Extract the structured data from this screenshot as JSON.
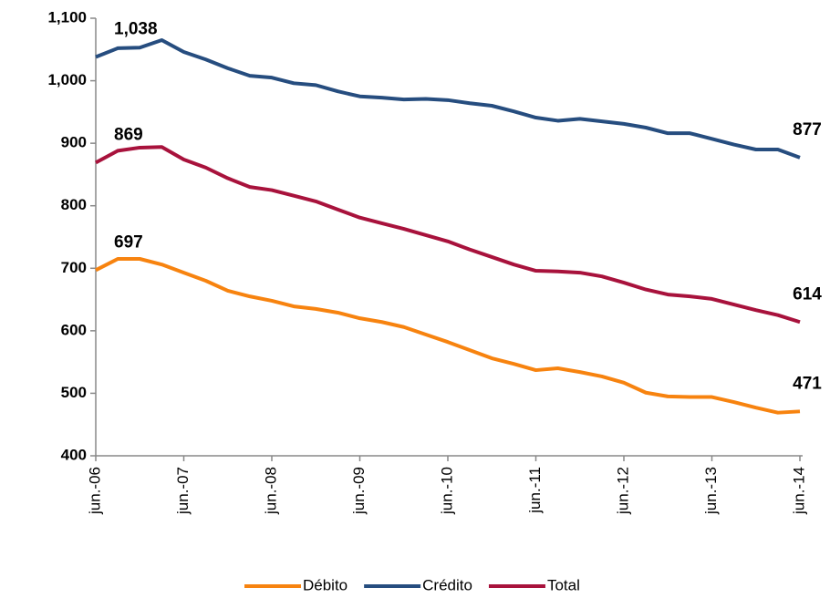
{
  "chart_data": {
    "type": "line",
    "categories": [
      "jun.-06",
      null,
      null,
      null,
      "jun.-07",
      null,
      null,
      null,
      "jun.-08",
      null,
      null,
      null,
      "jun.-09",
      null,
      null,
      null,
      "jun.-10",
      null,
      null,
      null,
      "jun.-11",
      null,
      null,
      null,
      "jun.-12",
      null,
      null,
      null,
      "jun.-13",
      null,
      null,
      null,
      "jun.-14"
    ],
    "series": [
      {
        "name": "Débito",
        "color": "#f7830f",
        "values": [
          697,
          715,
          715,
          706,
          693,
          680,
          664,
          655,
          648,
          639,
          635,
          629,
          620,
          614,
          606,
          594,
          582,
          569,
          556,
          547,
          537,
          540,
          534,
          527,
          517,
          501,
          495,
          494,
          494,
          486,
          477,
          469,
          471
        ],
        "value_labels": [
          "697",
          null,
          null,
          null,
          null,
          null,
          null,
          null,
          null,
          null,
          null,
          null,
          null,
          null,
          null,
          null,
          null,
          null,
          null,
          null,
          null,
          null,
          null,
          null,
          null,
          null,
          null,
          null,
          null,
          null,
          null,
          null,
          "471"
        ]
      },
      {
        "name": "Crédito",
        "color": "#264d7f",
        "values": [
          1038,
          1052,
          1053,
          1065,
          1046,
          1034,
          1020,
          1008,
          1005,
          996,
          993,
          983,
          975,
          973,
          970,
          971,
          969,
          964,
          960,
          951,
          941,
          936,
          939,
          935,
          931,
          925,
          916,
          916,
          907,
          898,
          890,
          890,
          877
        ],
        "value_labels": [
          "1,038",
          null,
          null,
          null,
          null,
          null,
          null,
          null,
          null,
          null,
          null,
          null,
          null,
          null,
          null,
          null,
          null,
          null,
          null,
          null,
          null,
          null,
          null,
          null,
          null,
          null,
          null,
          null,
          null,
          null,
          null,
          null,
          "877"
        ]
      },
      {
        "name": "Total",
        "color": "#a8123c",
        "values": [
          869,
          888,
          893,
          894,
          874,
          861,
          844,
          830,
          825,
          816,
          807,
          794,
          781,
          772,
          763,
          753,
          743,
          730,
          718,
          706,
          696,
          695,
          693,
          687,
          677,
          666,
          658,
          655,
          651,
          642,
          633,
          625,
          614
        ],
        "value_labels": [
          "869",
          null,
          null,
          null,
          null,
          null,
          null,
          null,
          null,
          null,
          null,
          null,
          null,
          null,
          null,
          null,
          null,
          null,
          null,
          null,
          null,
          null,
          null,
          null,
          null,
          null,
          null,
          null,
          null,
          null,
          null,
          null,
          "614"
        ]
      }
    ],
    "ylim": [
      400,
      1100
    ],
    "yticks": [
      400,
      500,
      600,
      700,
      800,
      900,
      {
        "value": 1000,
        "label": "1,000"
      },
      {
        "value": 1100,
        "label": "1,100"
      }
    ],
    "legend": "bottom",
    "grid": false
  }
}
